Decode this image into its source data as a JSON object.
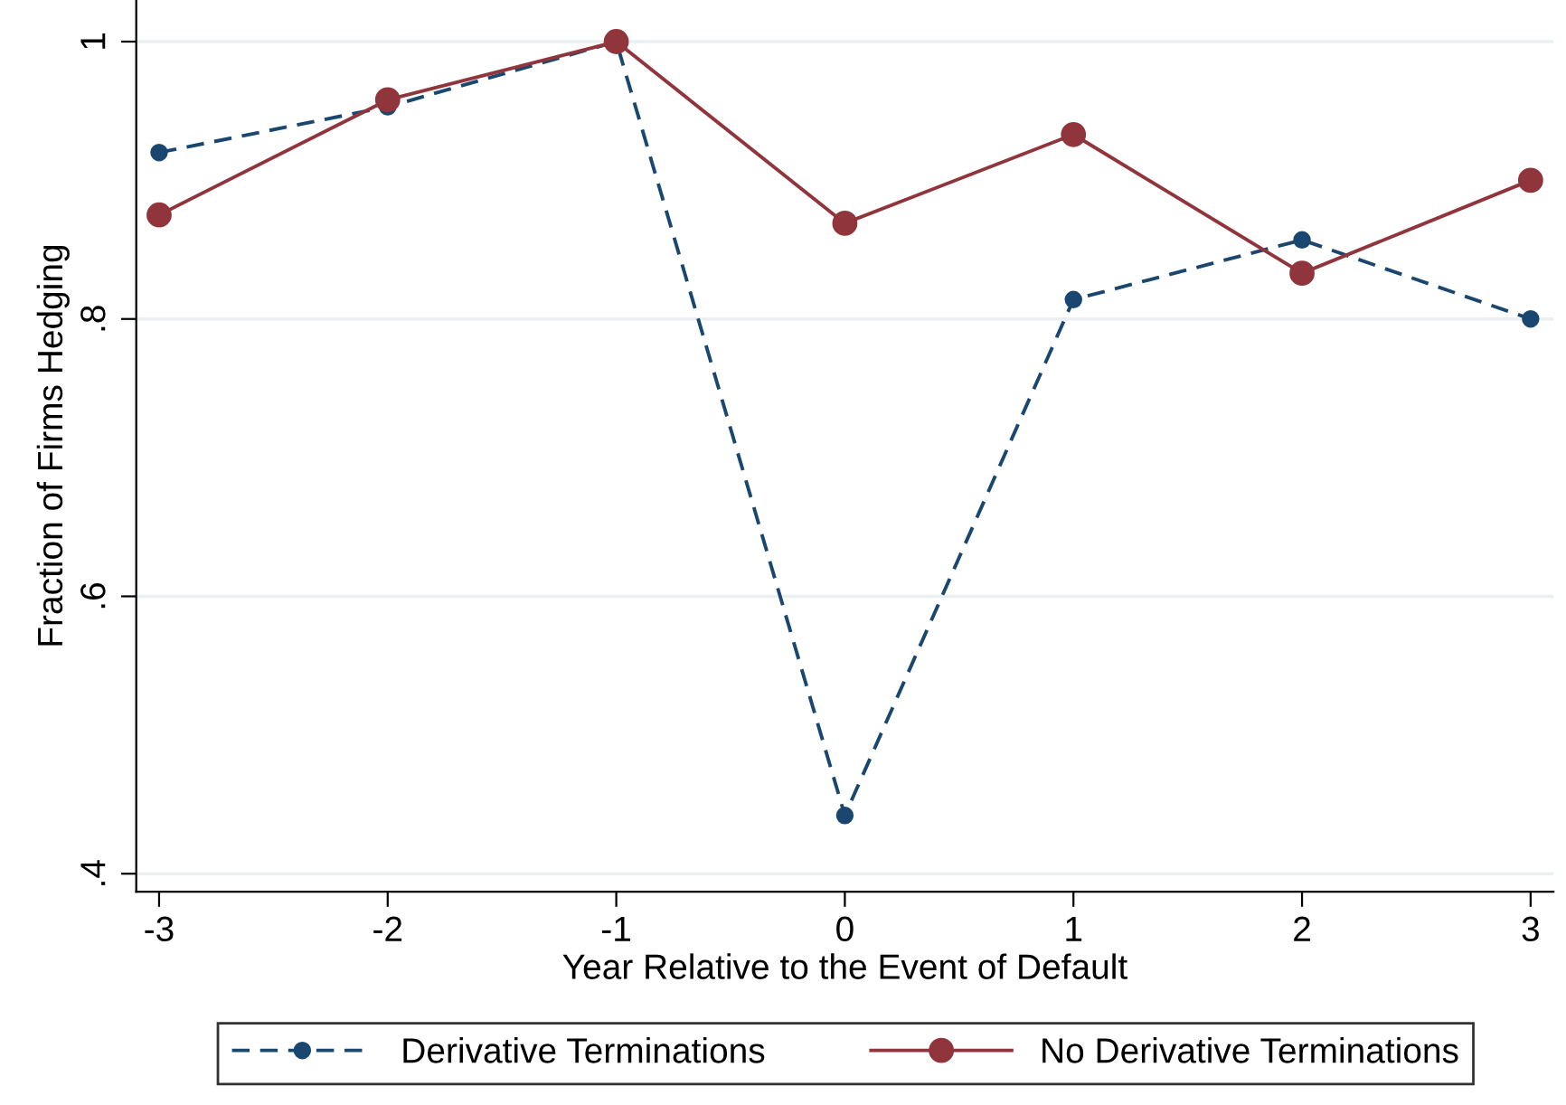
{
  "chart_data": {
    "type": "line",
    "xlabel": "Year Relative to the Event of Default",
    "ylabel": "Fraction of Firms Hedging",
    "x": [
      -3,
      -2,
      -1,
      0,
      1,
      2,
      3
    ],
    "series": [
      {
        "name": "Derivative Terminations",
        "color": "#1a476f",
        "line_style": "dashed",
        "marker": "circle",
        "values": [
          0.92,
          0.953,
          1.0,
          0.442,
          0.814,
          0.857,
          0.8
        ]
      },
      {
        "name": "No Derivative Terminations",
        "color": "#90353b",
        "line_style": "solid",
        "marker": "circle",
        "values": [
          0.875,
          0.958,
          1.0,
          0.869,
          0.933,
          0.833,
          0.9
        ]
      }
    ],
    "xlim": [
      -3.1,
      3.1
    ],
    "ylim": [
      0.387,
      1.03
    ],
    "xticks": [
      -3,
      -2,
      -1,
      0,
      1,
      2,
      3
    ],
    "yticks": [
      {
        "value": 0.4,
        "label": ".4"
      },
      {
        "value": 0.6,
        "label": ".6"
      },
      {
        "value": 0.8,
        "label": ".8"
      },
      1
    ],
    "grid": "y",
    "legend": "bottom"
  }
}
